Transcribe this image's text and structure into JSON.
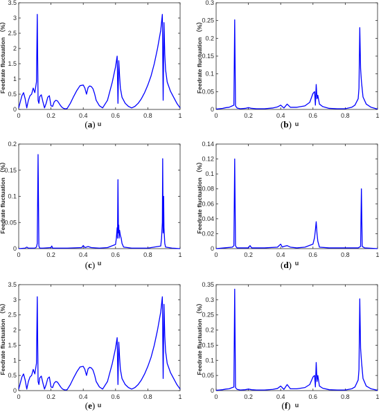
{
  "panels": [
    {
      "caption_letter": "a",
      "label": "(a)"
    },
    {
      "caption_letter": "b",
      "label": "(b)"
    },
    {
      "caption_letter": "c",
      "label": "(c)"
    },
    {
      "caption_letter": "d",
      "label": "(d)"
    },
    {
      "caption_letter": "e",
      "label": "(e)"
    },
    {
      "caption_letter": "f",
      "label": "(f)"
    }
  ],
  "series_color": "#0000ff",
  "chart_data": [
    {
      "type": "line",
      "panel": "(a)",
      "xlabel": "u",
      "ylabel": "Feedrate fluctuation （%）",
      "xlim": [
        0,
        1
      ],
      "ylim": [
        0,
        3.5
      ],
      "xticks": [
        "0",
        "0.2",
        "0.4",
        "0.6",
        "0.8",
        "1"
      ],
      "yticks": [
        "0",
        "0.5",
        "1",
        "1.5",
        "2",
        "2.5",
        "3",
        "3.5"
      ],
      "grid": false,
      "x": [
        0,
        0.01,
        0.02,
        0.03,
        0.04,
        0.05,
        0.06,
        0.07,
        0.08,
        0.09,
        0.1,
        0.11,
        0.115,
        0.12,
        0.125,
        0.13,
        0.14,
        0.15,
        0.16,
        0.17,
        0.18,
        0.19,
        0.2,
        0.21,
        0.22,
        0.23,
        0.24,
        0.25,
        0.26,
        0.27,
        0.28,
        0.29,
        0.3,
        0.32,
        0.34,
        0.36,
        0.38,
        0.4,
        0.41,
        0.42,
        0.43,
        0.44,
        0.45,
        0.46,
        0.47,
        0.48,
        0.5,
        0.52,
        0.55,
        0.58,
        0.6,
        0.61,
        0.615,
        0.62,
        0.625,
        0.63,
        0.64,
        0.66,
        0.68,
        0.7,
        0.72,
        0.74,
        0.76,
        0.78,
        0.8,
        0.82,
        0.84,
        0.86,
        0.88,
        0.89,
        0.895,
        0.9,
        0.905,
        0.91,
        0.92,
        0.94,
        0.96,
        0.98,
        1
      ],
      "y": [
        0.05,
        0.25,
        0.45,
        0.55,
        0.35,
        0.05,
        0.3,
        0.45,
        0.5,
        0.7,
        0.55,
        0.9,
        3.12,
        0.3,
        0.2,
        0.42,
        0.48,
        0.25,
        0.05,
        0.2,
        0.4,
        0.45,
        0.12,
        0.1,
        0.25,
        0.3,
        0.28,
        0.2,
        0.12,
        0.06,
        0.03,
        0.02,
        0.03,
        0.2,
        0.42,
        0.62,
        0.78,
        0.8,
        0.7,
        0.5,
        0.72,
        0.77,
        0.75,
        0.68,
        0.52,
        0.3,
        0.12,
        0.05,
        0.3,
        0.9,
        1.4,
        1.75,
        0.2,
        1.6,
        1.1,
        0.7,
        0.4,
        0.2,
        0.1,
        0.05,
        0.1,
        0.2,
        0.35,
        0.55,
        0.8,
        1.1,
        1.5,
        2.0,
        2.6,
        3.12,
        0.3,
        2.85,
        1.8,
        1.3,
        0.9,
        0.6,
        0.4,
        0.2,
        0.05
      ]
    },
    {
      "type": "line",
      "panel": "(b)",
      "xlabel": "u",
      "ylabel": "Feedrate fluctuation （%）",
      "xlim": [
        0,
        1
      ],
      "ylim": [
        0,
        0.3
      ],
      "xticks": [
        "0",
        "0.2",
        "0.4",
        "0.6",
        "0.8",
        "1"
      ],
      "yticks": [
        "0",
        "0.05",
        "0.1",
        "0.15",
        "0.2",
        "0.25",
        "0.3"
      ],
      "grid": false,
      "x": [
        0,
        0.02,
        0.04,
        0.06,
        0.08,
        0.1,
        0.11,
        0.115,
        0.12,
        0.13,
        0.15,
        0.18,
        0.2,
        0.22,
        0.25,
        0.3,
        0.35,
        0.38,
        0.4,
        0.42,
        0.44,
        0.46,
        0.5,
        0.55,
        0.58,
        0.6,
        0.61,
        0.615,
        0.62,
        0.625,
        0.63,
        0.64,
        0.66,
        0.7,
        0.75,
        0.8,
        0.84,
        0.86,
        0.88,
        0.885,
        0.89,
        0.895,
        0.9,
        0.91,
        0.93,
        0.96,
        1
      ],
      "y": [
        0.001,
        0.002,
        0.003,
        0.005,
        0.006,
        0.01,
        0.012,
        0.252,
        0.01,
        0.004,
        0.002,
        0.003,
        0.005,
        0.003,
        0.002,
        0.002,
        0.004,
        0.007,
        0.012,
        0.004,
        0.015,
        0.006,
        0.006,
        0.01,
        0.02,
        0.045,
        0.05,
        0.012,
        0.07,
        0.03,
        0.04,
        0.015,
        0.008,
        0.003,
        0.002,
        0.002,
        0.006,
        0.012,
        0.03,
        0.06,
        0.23,
        0.115,
        0.08,
        0.035,
        0.015,
        0.006,
        0.001
      ]
    },
    {
      "type": "line",
      "panel": "(c)",
      "xlabel": "u",
      "ylabel": "Feedrate fluctuation （%）",
      "xlim": [
        0,
        1
      ],
      "ylim": [
        0,
        0.2
      ],
      "xticks": [
        "0",
        "0.2",
        "0.4",
        "0.6",
        "0.8",
        "1"
      ],
      "yticks": [
        "0",
        "0.05",
        "0.1",
        "0.15",
        "0.2"
      ],
      "grid": false,
      "x": [
        0,
        0.04,
        0.05,
        0.06,
        0.1,
        0.11,
        0.115,
        0.12,
        0.125,
        0.13,
        0.15,
        0.2,
        0.205,
        0.21,
        0.3,
        0.39,
        0.4,
        0.41,
        0.42,
        0.43,
        0.45,
        0.5,
        0.55,
        0.6,
        0.605,
        0.61,
        0.612,
        0.615,
        0.618,
        0.62,
        0.622,
        0.625,
        0.63,
        0.635,
        0.64,
        0.65,
        0.7,
        0.8,
        0.88,
        0.885,
        0.89,
        0.892,
        0.895,
        0.898,
        0.9,
        0.905,
        0.91,
        0.95,
        1
      ],
      "y": [
        0,
        0.001,
        0.003,
        0.001,
        0.001,
        0.003,
        0.01,
        0.18,
        0.005,
        0.001,
        0.001,
        0.002,
        0.005,
        0.001,
        0.001,
        0.002,
        0.006,
        0.002,
        0.003,
        0.004,
        0.002,
        0.001,
        0.002,
        0.008,
        0.02,
        0.04,
        0.02,
        0.132,
        0.03,
        0.045,
        0.02,
        0.035,
        0.025,
        0.02,
        0.01,
        0.003,
        0.001,
        0.001,
        0.005,
        0.02,
        0.05,
        0.172,
        0.03,
        0.1,
        0.04,
        0.01,
        0.003,
        0.001,
        0
      ]
    },
    {
      "type": "line",
      "panel": "(d)",
      "xlabel": "u",
      "ylabel": "Feedrate fluctuation （%）",
      "xlim": [
        0,
        1
      ],
      "ylim": [
        0,
        0.14
      ],
      "xticks": [
        "0",
        "0.2",
        "0.4",
        "0.6",
        "0.8",
        "1"
      ],
      "yticks": [
        "0",
        "0.02",
        "0.04",
        "0.06",
        "0.08",
        "0.1",
        "0.12",
        "0.14"
      ],
      "grid": false,
      "x": [
        0,
        0.05,
        0.1,
        0.11,
        0.115,
        0.12,
        0.125,
        0.13,
        0.15,
        0.2,
        0.21,
        0.22,
        0.3,
        0.38,
        0.4,
        0.41,
        0.42,
        0.44,
        0.46,
        0.5,
        0.55,
        0.6,
        0.61,
        0.615,
        0.62,
        0.625,
        0.63,
        0.64,
        0.7,
        0.8,
        0.88,
        0.895,
        0.9,
        0.905,
        0.92,
        1
      ],
      "y": [
        0,
        0.001,
        0.002,
        0.004,
        0.12,
        0.004,
        0.002,
        0.001,
        0.001,
        0.001,
        0.004,
        0.001,
        0.001,
        0.002,
        0.006,
        0.002,
        0.003,
        0.004,
        0.002,
        0.001,
        0.002,
        0.006,
        0.015,
        0.025,
        0.036,
        0.02,
        0.01,
        0.002,
        0.001,
        0.001,
        0.001,
        0.003,
        0.08,
        0.003,
        0.001,
        0
      ]
    },
    {
      "type": "line",
      "panel": "(e)",
      "xlabel": "u",
      "ylabel": "Feedrate fluctuation （%）",
      "xlim": [
        0,
        1
      ],
      "ylim": [
        0,
        3.5
      ],
      "xticks": [
        "0",
        "0.2",
        "0.4",
        "0.6",
        "0.8",
        "1"
      ],
      "yticks": [
        "0",
        "0.5",
        "1",
        "1.5",
        "2",
        "2.5",
        "3",
        "3.5"
      ],
      "grid": false,
      "x": [
        0,
        0.01,
        0.02,
        0.03,
        0.04,
        0.05,
        0.06,
        0.07,
        0.08,
        0.09,
        0.1,
        0.11,
        0.115,
        0.12,
        0.125,
        0.13,
        0.14,
        0.15,
        0.16,
        0.17,
        0.18,
        0.19,
        0.2,
        0.21,
        0.22,
        0.23,
        0.24,
        0.25,
        0.26,
        0.27,
        0.28,
        0.29,
        0.3,
        0.32,
        0.34,
        0.36,
        0.38,
        0.4,
        0.41,
        0.42,
        0.43,
        0.44,
        0.45,
        0.46,
        0.47,
        0.48,
        0.5,
        0.52,
        0.55,
        0.58,
        0.6,
        0.61,
        0.615,
        0.62,
        0.625,
        0.63,
        0.64,
        0.66,
        0.68,
        0.7,
        0.72,
        0.74,
        0.76,
        0.78,
        0.8,
        0.82,
        0.84,
        0.86,
        0.88,
        0.89,
        0.895,
        0.9,
        0.905,
        0.91,
        0.92,
        0.94,
        0.96,
        0.98,
        1
      ],
      "y": [
        0.05,
        0.25,
        0.45,
        0.55,
        0.35,
        0.05,
        0.3,
        0.45,
        0.5,
        0.7,
        0.55,
        0.9,
        3.1,
        0.3,
        0.2,
        0.42,
        0.48,
        0.25,
        0.05,
        0.2,
        0.4,
        0.45,
        0.12,
        0.1,
        0.25,
        0.3,
        0.28,
        0.2,
        0.12,
        0.06,
        0.03,
        0.02,
        0.03,
        0.2,
        0.42,
        0.62,
        0.78,
        0.8,
        0.7,
        0.5,
        0.72,
        0.77,
        0.75,
        0.68,
        0.52,
        0.3,
        0.12,
        0.05,
        0.3,
        0.9,
        1.4,
        1.75,
        0.2,
        1.6,
        1.1,
        0.7,
        0.4,
        0.2,
        0.1,
        0.05,
        0.1,
        0.2,
        0.35,
        0.55,
        0.8,
        1.1,
        1.5,
        2.0,
        2.6,
        3.1,
        0.4,
        2.85,
        1.8,
        1.3,
        0.9,
        0.6,
        0.4,
        0.2,
        0.05
      ]
    },
    {
      "type": "line",
      "panel": "(f)",
      "xlabel": "u",
      "ylabel": "Feedrate fluctuation （%）",
      "xlim": [
        0,
        1
      ],
      "ylim": [
        0,
        0.35
      ],
      "xticks": [
        "0",
        "0.2",
        "0.4",
        "0.6",
        "0.8",
        "1"
      ],
      "yticks": [
        "0",
        "0.05",
        "0.1",
        "0.15",
        "0.2",
        "0.25",
        "0.3",
        "0.35"
      ],
      "grid": false,
      "x": [
        0,
        0.02,
        0.04,
        0.06,
        0.08,
        0.1,
        0.11,
        0.115,
        0.12,
        0.13,
        0.15,
        0.18,
        0.2,
        0.22,
        0.25,
        0.3,
        0.35,
        0.38,
        0.4,
        0.42,
        0.44,
        0.46,
        0.5,
        0.55,
        0.58,
        0.6,
        0.61,
        0.615,
        0.62,
        0.625,
        0.63,
        0.64,
        0.66,
        0.7,
        0.75,
        0.8,
        0.84,
        0.86,
        0.88,
        0.885,
        0.89,
        0.895,
        0.9,
        0.91,
        0.93,
        0.96,
        1
      ],
      "y": [
        0.001,
        0.002,
        0.003,
        0.005,
        0.006,
        0.01,
        0.012,
        0.335,
        0.01,
        0.004,
        0.002,
        0.003,
        0.005,
        0.003,
        0.002,
        0.002,
        0.004,
        0.007,
        0.015,
        0.004,
        0.02,
        0.006,
        0.006,
        0.01,
        0.02,
        0.045,
        0.05,
        0.012,
        0.093,
        0.03,
        0.05,
        0.015,
        0.008,
        0.003,
        0.002,
        0.002,
        0.006,
        0.012,
        0.035,
        0.07,
        0.303,
        0.14,
        0.1,
        0.04,
        0.015,
        0.006,
        0.001
      ]
    }
  ]
}
